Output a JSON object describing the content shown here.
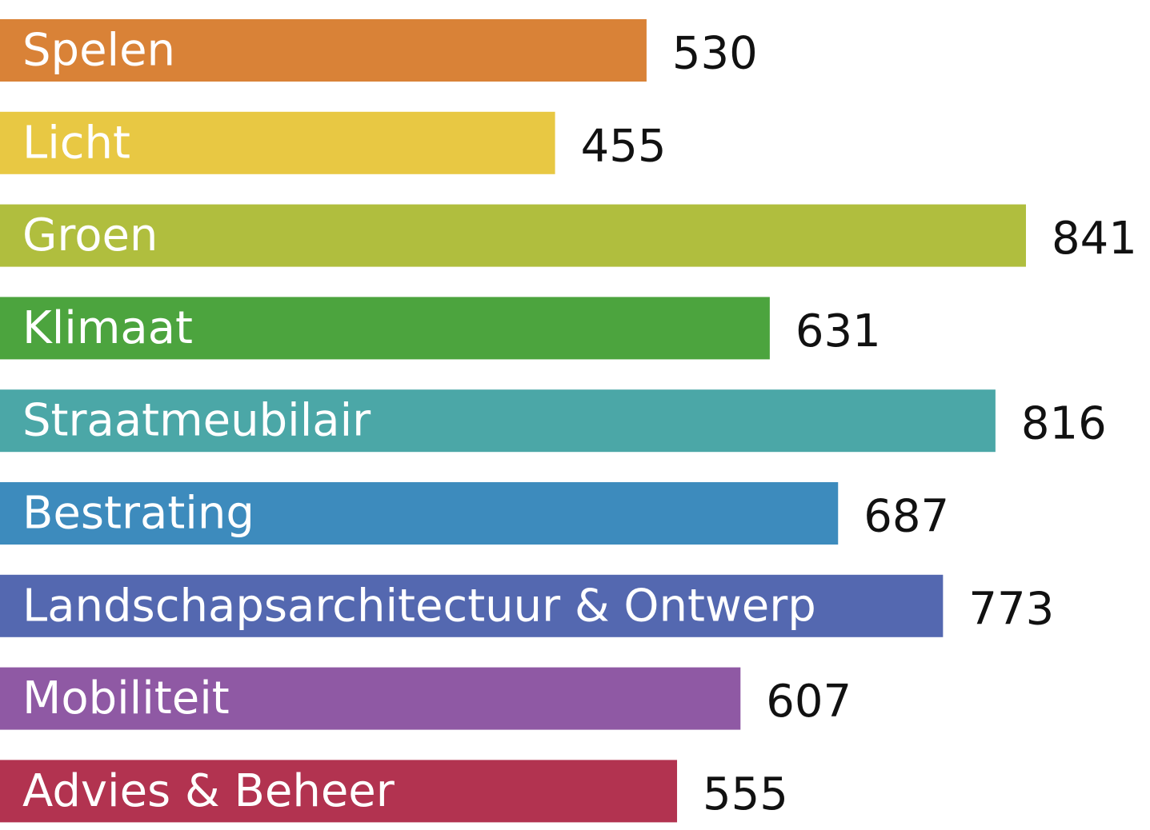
{
  "chart_data": {
    "type": "bar",
    "orientation": "horizontal",
    "categories": [
      "Spelen",
      "Licht",
      "Groen",
      "Klimaat",
      "Straatmeubilair",
      "Bestrating",
      "Landschapsarchitectuur & Ontwerp",
      "Mobiliteit",
      "Advies & Beheer"
    ],
    "values": [
      530,
      455,
      841,
      631,
      816,
      687,
      773,
      607,
      555
    ],
    "value_labels": [
      "530",
      "455",
      "841",
      "631",
      "816",
      "687",
      "773",
      "607",
      "555"
    ],
    "colors": [
      "#d98237",
      "#e8c843",
      "#b0be3e",
      "#4ca43e",
      "#4ba7a7",
      "#3d8bbd",
      "#5468b0",
      "#8f59a4",
      "#b23350"
    ],
    "title": "",
    "xlabel": "",
    "ylabel": "",
    "xlim": [
      0,
      841
    ],
    "grid": false,
    "legend": "none",
    "category_labels_inside_bars": true,
    "value_labels_outside_bars": true
  }
}
